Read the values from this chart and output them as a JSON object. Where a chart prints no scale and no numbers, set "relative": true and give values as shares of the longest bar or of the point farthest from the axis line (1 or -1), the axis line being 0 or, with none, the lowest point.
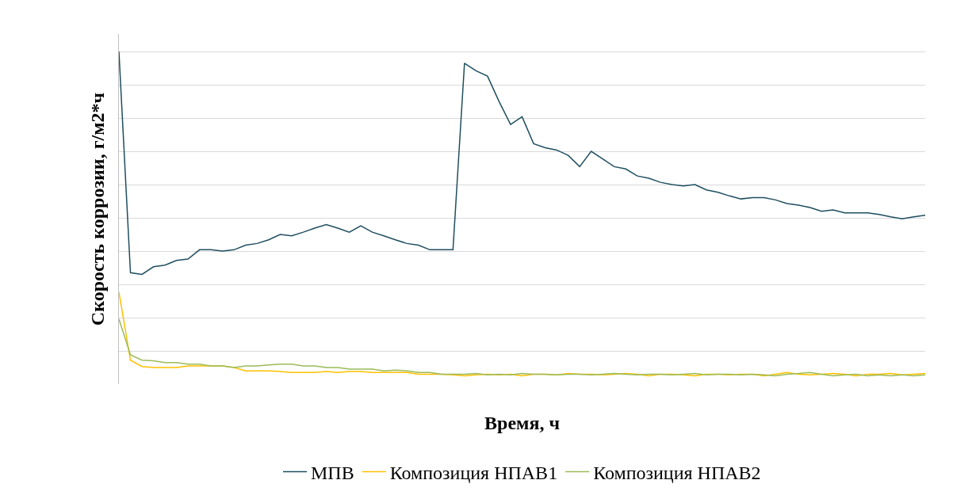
{
  "chart_data": {
    "type": "line",
    "relative": true,
    "xlabel": "Время, ч",
    "ylabel": "Скорость коррозии, г/м2*ч",
    "grid": true,
    "legend": "bottom",
    "marker": "none",
    "line_style": "solid",
    "categories": [
      null,
      null,
      null,
      null,
      null,
      null,
      null,
      null,
      null,
      null,
      null,
      null,
      null,
      null,
      null,
      null,
      null,
      null,
      null,
      null,
      null,
      null,
      null,
      null,
      null,
      null,
      null,
      null,
      null,
      null,
      null,
      null,
      null,
      null,
      null,
      null,
      null,
      null,
      null,
      null,
      null,
      null,
      null,
      null,
      null,
      null,
      null,
      null,
      null,
      null,
      null,
      null,
      null,
      null,
      null,
      null,
      null,
      null,
      null,
      null,
      null,
      null,
      null,
      null,
      null,
      null,
      null,
      null,
      null,
      null,
      null
    ],
    "series": [
      {
        "name": "МПВ",
        "color": "#1f4e5f",
        "values": [
          1,
          0.335,
          0.33,
          0.353,
          0.358,
          0.372,
          0.376,
          0.404,
          0.404,
          0.4,
          0.404,
          0.418,
          0.423,
          0.434,
          0.45,
          0.446,
          0.457,
          0.469,
          0.48,
          0.469,
          0.457,
          0.476,
          0.457,
          0.446,
          0.434,
          0.423,
          0.418,
          0.404,
          0.404,
          0.404,
          0.965,
          0.942,
          0.926,
          0.85,
          0.781,
          0.804,
          0.723,
          0.711,
          0.704,
          0.688,
          0.654,
          0.7,
          0.677,
          0.654,
          0.647,
          0.626,
          0.619,
          0.607,
          0.6,
          0.596,
          0.6,
          0.584,
          0.577,
          0.566,
          0.557,
          0.561,
          0.561,
          0.554,
          0.543,
          0.538,
          0.531,
          0.52,
          0.524,
          0.515,
          0.515,
          0.515,
          0.51,
          0.503,
          0.497,
          0.503,
          0.508
        ]
      },
      {
        "name": "Композиция НПАВ1",
        "color": "#ffc000",
        "values": [
          0.277,
          0.072,
          0.053,
          0.05,
          0.05,
          0.05,
          0.055,
          0.055,
          0.055,
          0.055,
          0.05,
          0.04,
          0.04,
          0.04,
          0.038,
          0.035,
          0.035,
          0.035,
          0.038,
          0.035,
          0.038,
          0.038,
          0.035,
          0.035,
          0.035,
          0.035,
          0.03,
          0.03,
          0.03,
          0.028,
          0.025,
          0.028,
          0.03,
          0.028,
          0.03,
          0.025,
          0.03,
          0.03,
          0.028,
          0.032,
          0.03,
          0.03,
          0.028,
          0.03,
          0.032,
          0.03,
          0.025,
          0.03,
          0.03,
          0.028,
          0.025,
          0.03,
          0.03,
          0.028,
          0.03,
          0.03,
          0.025,
          0.03,
          0.035,
          0.03,
          0.028,
          0.03,
          0.032,
          0.03,
          0.025,
          0.03,
          0.03,
          0.032,
          0.028,
          0.03,
          0.032
        ]
      },
      {
        "name": "Композиция НПАВ2",
        "color": "#9bbb59",
        "values": [
          0.196,
          0.088,
          0.072,
          0.07,
          0.065,
          0.065,
          0.06,
          0.06,
          0.055,
          0.055,
          0.05,
          0.055,
          0.055,
          0.058,
          0.06,
          0.06,
          0.055,
          0.055,
          0.05,
          0.05,
          0.045,
          0.045,
          0.045,
          0.04,
          0.042,
          0.04,
          0.035,
          0.035,
          0.03,
          0.03,
          0.03,
          0.032,
          0.028,
          0.03,
          0.028,
          0.032,
          0.03,
          0.03,
          0.028,
          0.03,
          0.03,
          0.028,
          0.03,
          0.032,
          0.03,
          0.028,
          0.03,
          0.03,
          0.028,
          0.03,
          0.032,
          0.028,
          0.03,
          0.03,
          0.028,
          0.03,
          0.028,
          0.025,
          0.03,
          0.032,
          0.035,
          0.03,
          0.025,
          0.028,
          0.03,
          0.025,
          0.028,
          0.025,
          0.028,
          0.025,
          0.028
        ]
      }
    ]
  }
}
